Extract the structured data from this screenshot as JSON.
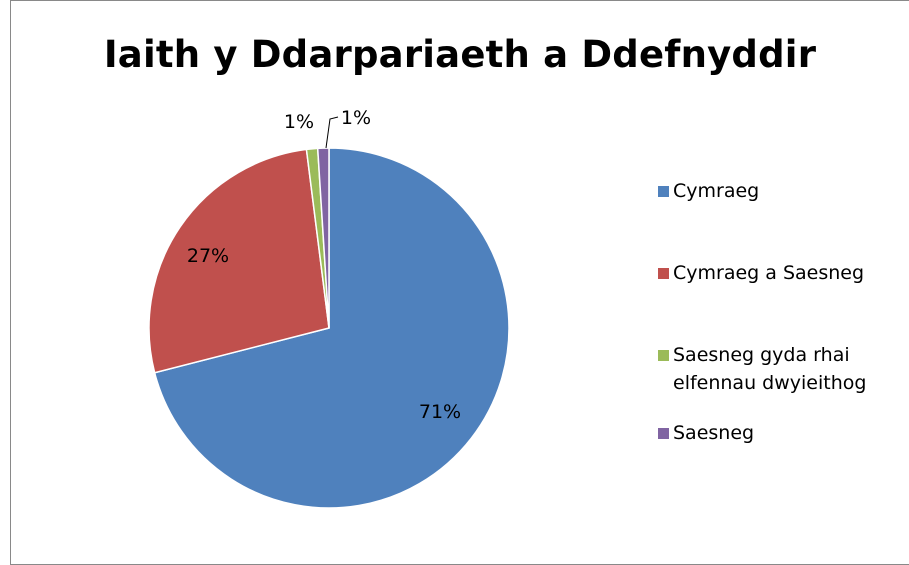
{
  "chart_data": {
    "type": "pie",
    "title": "Iaith y Ddarpariaeth a Ddefnyddir",
    "categories": [
      "Cymraeg",
      "Cymraeg a Saesneg",
      "Saesneg gyda rhai elfennau dwyieithog",
      "Saesneg"
    ],
    "values": [
      71,
      27,
      1,
      1
    ],
    "data_labels": [
      "71%",
      "27%",
      "1%",
      "1%"
    ],
    "colors": [
      "#4f81bd",
      "#c0504d",
      "#9bbb59",
      "#8064a2"
    ],
    "legend_position": "right",
    "start_angle_deg": 0,
    "direction": "clockwise"
  }
}
